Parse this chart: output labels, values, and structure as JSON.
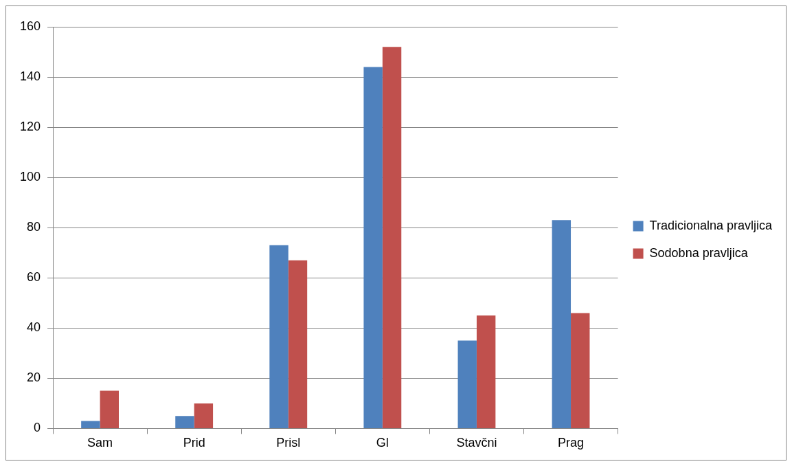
{
  "chart_data": {
    "type": "bar",
    "categories": [
      "Sam",
      "Prid",
      "Prisl",
      "Gl",
      "Stavčni",
      "Prag"
    ],
    "series": [
      {
        "name": "Tradicionalna pravljica",
        "color": "#4f81bd",
        "values": [
          3,
          5,
          73,
          144,
          35,
          83
        ]
      },
      {
        "name": "Sodobna pravljica",
        "color": "#c0504d",
        "values": [
          15,
          10,
          67,
          152,
          45,
          46
        ]
      }
    ],
    "ylim": [
      0,
      160
    ],
    "yticks": [
      0,
      20,
      40,
      60,
      80,
      100,
      120,
      140,
      160
    ],
    "grid": "y",
    "legend": "right"
  }
}
